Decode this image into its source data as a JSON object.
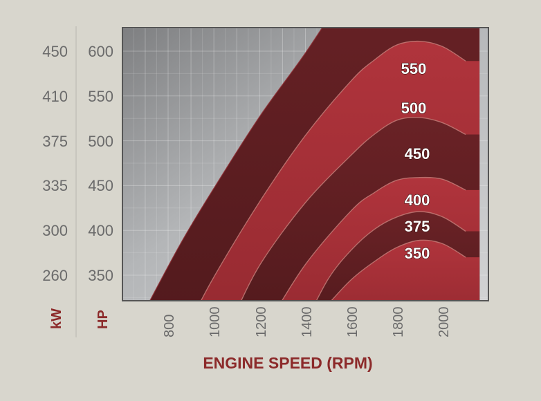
{
  "chart_data": {
    "type": "area",
    "title": "",
    "xlabel": "ENGINE SPEED (RPM)",
    "x_ticks": [
      "800",
      "1000",
      "1200",
      "1400",
      "1600",
      "1800",
      "2000"
    ],
    "xlim": [
      800,
      2000
    ],
    "y_axes": [
      {
        "label": "kW",
        "ticks": [
          "450",
          "410",
          "375",
          "335",
          "300",
          "260"
        ]
      },
      {
        "label": "HP",
        "ticks": [
          "600",
          "550",
          "500",
          "450",
          "400",
          "350"
        ]
      }
    ],
    "ylim_hp": [
      350,
      600
    ],
    "grid": true,
    "colors": {
      "band_light": "#a8303a",
      "band_dark": "#5e1f22",
      "background": "#d8d6cd",
      "label": "#8c2a2a"
    },
    "series": [
      {
        "name": "550",
        "x": [
          670,
          850,
          1000,
          1200,
          1400,
          1600,
          1700,
          1800,
          1900,
          2000,
          2100
        ],
        "y": [
          297,
          383,
          447,
          527,
          598,
          675,
          705,
          716,
          715,
          706,
          686
        ]
      },
      {
        "name": "500",
        "x": [
          895,
          1000,
          1200,
          1400,
          1600,
          1700,
          1800,
          1900,
          2000,
          2100
        ],
        "y": [
          297,
          348,
          432,
          506,
          567,
          590,
          607,
          611,
          605,
          589
        ]
      },
      {
        "name": "450",
        "x": [
          1075,
          1200,
          1400,
          1600,
          1700,
          1800,
          1900,
          2000,
          2100
        ],
        "y": [
          297,
          361,
          431,
          484,
          507,
          523,
          526,
          520,
          507
        ]
      },
      {
        "name": "400",
        "x": [
          1240,
          1400,
          1600,
          1700,
          1800,
          1900,
          2000,
          2100
        ],
        "y": [
          297,
          362,
          422,
          442,
          456,
          459,
          457,
          445
        ]
      },
      {
        "name": "375",
        "x": [
          1400,
          1500,
          1600,
          1700,
          1800,
          1900,
          2000,
          2100
        ],
        "y": [
          297,
          346,
          378,
          401,
          415,
          421,
          415,
          399
        ]
      },
      {
        "name": "350",
        "x": [
          1420,
          1500,
          1600,
          1700,
          1800,
          1900,
          2000,
          2100
        ],
        "y": [
          297,
          318,
          345,
          365,
          381,
          389,
          385,
          370
        ]
      }
    ]
  }
}
